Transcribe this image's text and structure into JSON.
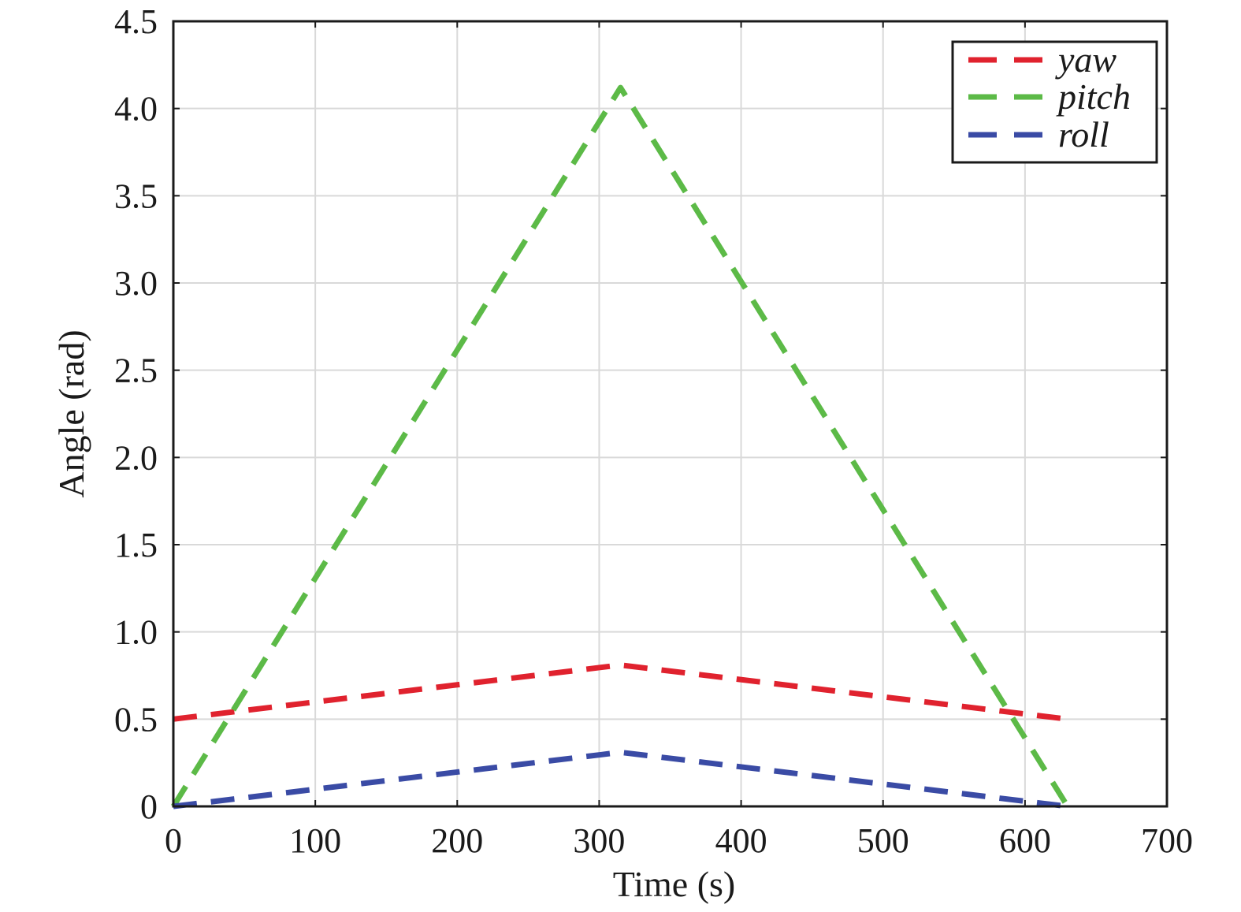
{
  "chart_data": {
    "type": "line",
    "title": "",
    "xlabel": "Time (s)",
    "ylabel": "Angle (rad)",
    "xlim": [
      0,
      700
    ],
    "ylim": [
      0,
      4.5
    ],
    "x_ticks": [
      0,
      100,
      200,
      300,
      400,
      500,
      600,
      700
    ],
    "x_tick_labels": [
      "0",
      "100",
      "200",
      "300",
      "400",
      "500",
      "600",
      "700"
    ],
    "y_ticks": [
      0,
      0.5,
      1.0,
      1.5,
      2.0,
      2.5,
      3.0,
      3.5,
      4.0,
      4.5
    ],
    "y_tick_labels": [
      "0",
      "0.5",
      "1.0",
      "1.5",
      "2.0",
      "2.5",
      "3.0",
      "3.5",
      "4.0",
      "4.5"
    ],
    "grid": true,
    "legend_position": "top-right",
    "line_style": "dashed",
    "series": [
      {
        "name": "yaw",
        "color": "#e0222e",
        "x": [
          0,
          315,
          630
        ],
        "y": [
          0.5,
          0.81,
          0.5
        ]
      },
      {
        "name": "pitch",
        "color": "#5cba47",
        "x": [
          0,
          315,
          630
        ],
        "y": [
          0.0,
          4.12,
          0.0
        ]
      },
      {
        "name": "roll",
        "color": "#3a4ba5",
        "x": [
          0,
          315,
          630
        ],
        "y": [
          0.0,
          0.31,
          0.0
        ]
      }
    ]
  }
}
